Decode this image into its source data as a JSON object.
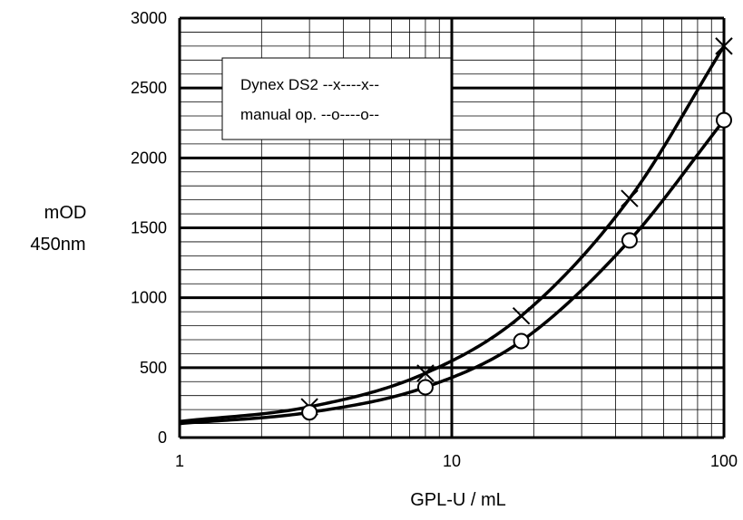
{
  "chart_data": {
    "type": "line",
    "xscale": "log",
    "xlim": [
      1,
      100
    ],
    "ylim": [
      0,
      3000
    ],
    "xticks": [
      "1",
      "10",
      "100"
    ],
    "yticks": [
      "0",
      "500",
      "1000",
      "1500",
      "2000",
      "2500",
      "3000"
    ],
    "xlabel": "GPL-U / mL",
    "ylabel_line1": "mOD",
    "ylabel_line2": "450nm",
    "grid": true,
    "legend_position": "top-left",
    "legend": [
      "Dynex DS2 --x----x--",
      "manual op. --o----o--"
    ],
    "series": [
      {
        "name": "Dynex DS2",
        "marker": "x",
        "x": [
          3,
          8,
          18,
          45,
          100
        ],
        "y": [
          220,
          460,
          870,
          1710,
          2800
        ],
        "curve_start": 115
      },
      {
        "name": "manual op.",
        "marker": "o",
        "x": [
          3,
          8,
          18,
          45,
          100
        ],
        "y": [
          180,
          360,
          690,
          1410,
          2270
        ],
        "curve_start": 100
      }
    ]
  }
}
